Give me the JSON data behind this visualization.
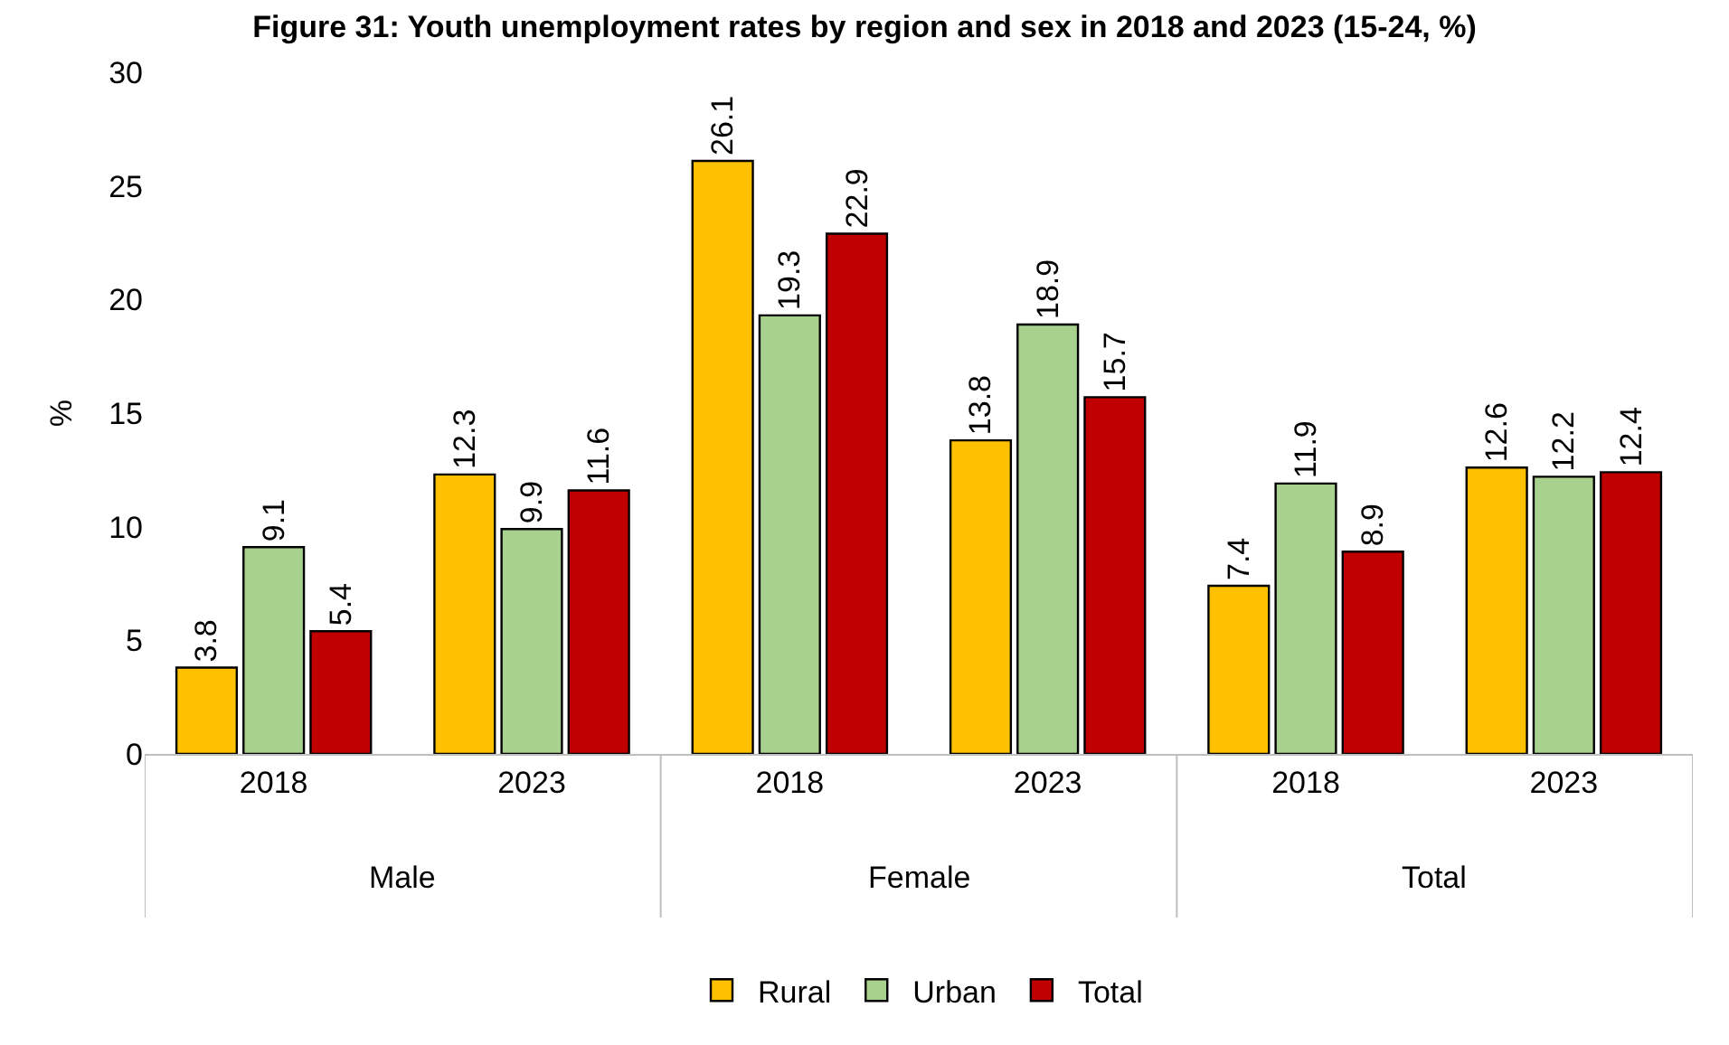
{
  "chart_data": {
    "type": "bar",
    "title": "Figure 31: Youth unemployment rates by region and sex in 2018 and 2023 (15-24, %)",
    "ylabel": "%",
    "categories": [
      "2018",
      "2023",
      "2018",
      "2023",
      "2018",
      "2023"
    ],
    "annotations": [
      "Male",
      "Female",
      "Total"
    ],
    "series": [
      {
        "name": "Rural",
        "color": "#ffc000",
        "values": [
          3.8,
          12.3,
          26.1,
          13.8,
          7.4,
          12.6
        ]
      },
      {
        "name": "Urban",
        "color": "#a9d18e",
        "values": [
          9.1,
          9.9,
          19.3,
          18.9,
          11.9,
          12.2
        ]
      },
      {
        "name": "Total",
        "color": "#c00000",
        "values": [
          5.4,
          11.6,
          22.9,
          15.7,
          8.9,
          12.4
        ]
      }
    ],
    "ylim": [
      0,
      30
    ],
    "yticks": [
      0,
      5,
      10,
      15,
      20,
      25,
      30
    ],
    "data_labels": true,
    "grid": false,
    "legend": "bottom"
  }
}
